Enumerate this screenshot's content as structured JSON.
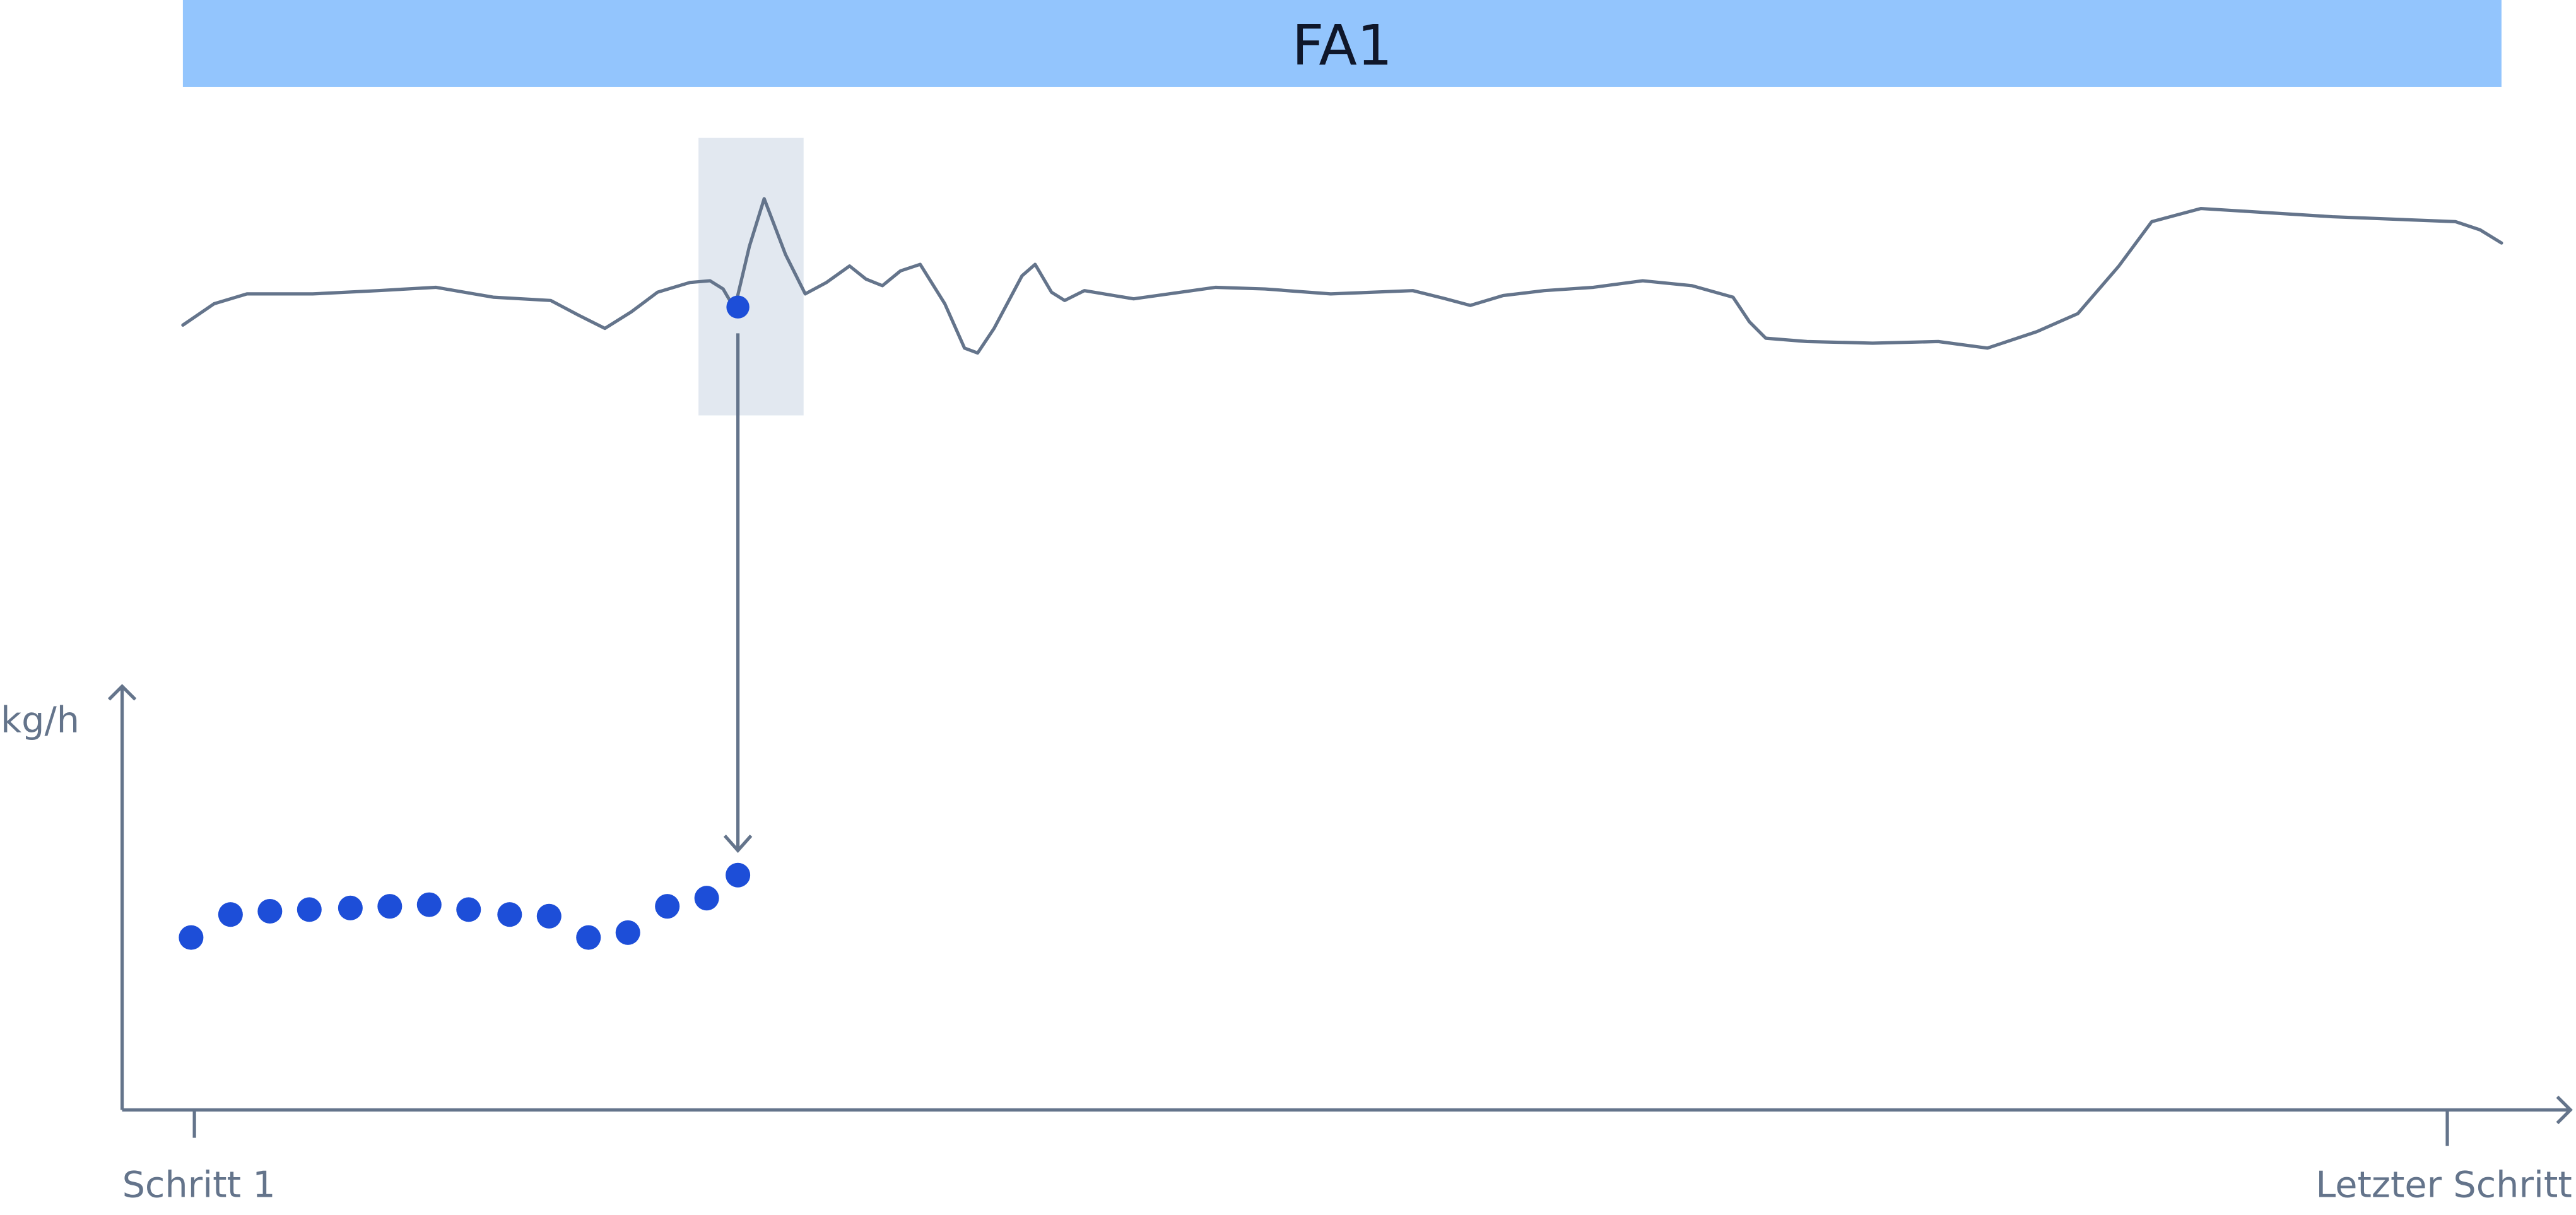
{
  "header": {
    "title": "FA1"
  },
  "axis": {
    "y_label": "kg/h",
    "x_start": "Schritt 1",
    "x_end": "Letzter Schritt"
  }
}
